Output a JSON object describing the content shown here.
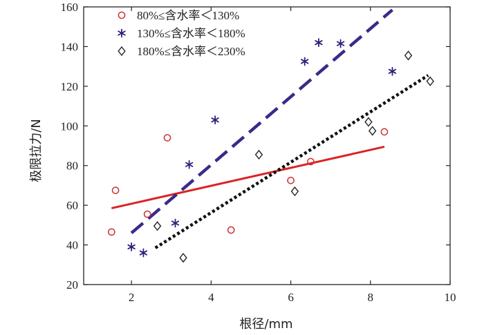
{
  "chart_data": {
    "type": "scatter",
    "xlabel": "根径/mm",
    "ylabel": "极限拉力/N",
    "xlim": [
      0.8,
      10
    ],
    "ylim": [
      20,
      160
    ],
    "xticks": [
      2,
      4,
      6,
      8,
      10
    ],
    "yticks": [
      20,
      40,
      60,
      80,
      100,
      120,
      140,
      160
    ],
    "legend_position": "top-left",
    "series": [
      {
        "name": "80%≤含水率＜130%",
        "marker": "circle",
        "color": "#cc3333",
        "points": [
          [
            1.5,
            46.5
          ],
          [
            1.6,
            67.5
          ],
          [
            2.4,
            55.5
          ],
          [
            2.9,
            94
          ],
          [
            4.5,
            47.5
          ],
          [
            6.0,
            72.5
          ],
          [
            6.5,
            82
          ],
          [
            8.35,
            97
          ]
        ],
        "fit": {
          "x": [
            1.5,
            8.35
          ],
          "y": [
            58.5,
            89.5
          ],
          "color": "#dd2222",
          "style": "solid"
        }
      },
      {
        "name": "130%≤含水率＜180%",
        "marker": "asterisk",
        "color": "#2e1f7a",
        "points": [
          [
            2.0,
            39
          ],
          [
            2.3,
            36
          ],
          [
            3.1,
            51
          ],
          [
            3.45,
            80.5
          ],
          [
            4.1,
            103
          ],
          [
            6.35,
            132.5
          ],
          [
            6.7,
            142
          ],
          [
            7.25,
            141.5
          ],
          [
            8.55,
            127.5
          ]
        ],
        "fit": {
          "x": [
            2.0,
            8.55
          ],
          "y": [
            46,
            158.5
          ],
          "color": "#3a2a8a",
          "style": "dashed"
        }
      },
      {
        "name": "180%≤含水率＜230%",
        "marker": "diamond",
        "color": "#222222",
        "points": [
          [
            2.65,
            49.5
          ],
          [
            3.3,
            33.5
          ],
          [
            5.2,
            85.5
          ],
          [
            6.1,
            67
          ],
          [
            7.95,
            102
          ],
          [
            8.05,
            97.5
          ],
          [
            8.95,
            135.5
          ],
          [
            9.5,
            122.5
          ]
        ],
        "fit": {
          "x": [
            2.6,
            9.45
          ],
          "y": [
            38.5,
            125.5
          ],
          "color": "#111111",
          "style": "dotted"
        }
      }
    ]
  }
}
